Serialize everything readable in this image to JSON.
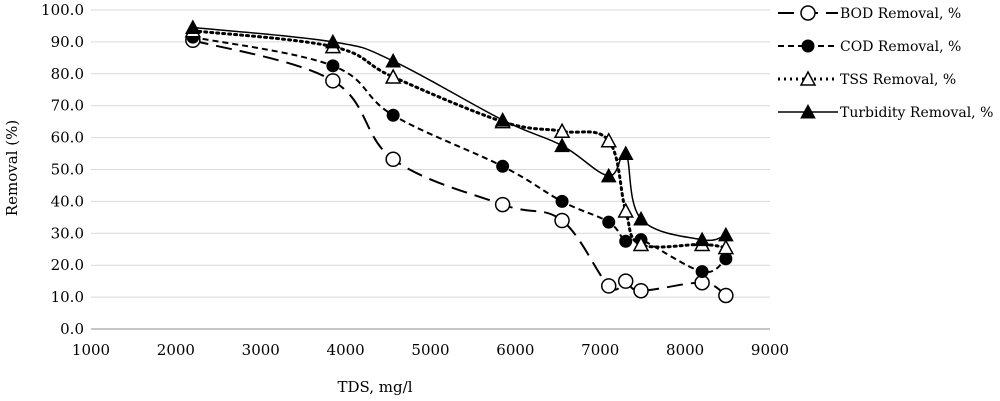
{
  "chart_data": {
    "type": "line",
    "title": "",
    "xlabel": "TDS, mg/l",
    "ylabel": "Removal (%)",
    "xlim": [
      1000,
      9000
    ],
    "ylim": [
      0,
      100
    ],
    "x_ticks": [
      "1000",
      "2000",
      "3000",
      "4000",
      "5000",
      "6000",
      "7000",
      "8000",
      "9000"
    ],
    "y_ticks": [
      "0.0",
      "10.0",
      "20.0",
      "30.0",
      "40.0",
      "50.0",
      "60.0",
      "70.0",
      "80.0",
      "90.0",
      "100.0"
    ],
    "grid": "horizontal",
    "legend_position": "right",
    "series": [
      {
        "name": "BOD Removal, %",
        "line_style": "long-dash",
        "marker": "open-circle",
        "color": "#000000",
        "points": [
          [
            2200,
            90.5
          ],
          [
            3850,
            77.8
          ],
          [
            4560,
            53.2
          ],
          [
            5850,
            39.0
          ],
          [
            6550,
            34.0
          ],
          [
            7100,
            13.5
          ],
          [
            7300,
            15.0
          ],
          [
            7480,
            12.0
          ],
          [
            8200,
            14.5
          ],
          [
            8480,
            10.5
          ]
        ]
      },
      {
        "name": "COD Removal, %",
        "line_style": "dash",
        "marker": "filled-circle",
        "color": "#000000",
        "points": [
          [
            2200,
            91.5
          ],
          [
            3850,
            82.5
          ],
          [
            4560,
            67.0
          ],
          [
            5850,
            51.0
          ],
          [
            6550,
            40.0
          ],
          [
            7100,
            33.5
          ],
          [
            7300,
            27.5
          ],
          [
            7480,
            28.0
          ],
          [
            8200,
            18.0
          ],
          [
            8480,
            22.0
          ]
        ]
      },
      {
        "name": "TSS Removal, %",
        "line_style": "dotted",
        "marker": "open-triangle",
        "color": "#000000",
        "points": [
          [
            2200,
            93.5
          ],
          [
            3850,
            88.5
          ],
          [
            4560,
            79.0
          ],
          [
            5850,
            65.0
          ],
          [
            6550,
            62.0
          ],
          [
            7100,
            59.0
          ],
          [
            7300,
            37.0
          ],
          [
            7480,
            26.5
          ],
          [
            8200,
            26.5
          ],
          [
            8480,
            25.5
          ]
        ]
      },
      {
        "name": "Turbidity Removal, %",
        "line_style": "solid",
        "marker": "filled-triangle",
        "color": "#000000",
        "points": [
          [
            2200,
            94.5
          ],
          [
            3850,
            90.0
          ],
          [
            4560,
            84.0
          ],
          [
            5850,
            65.5
          ],
          [
            6550,
            57.5
          ],
          [
            7100,
            48.0
          ],
          [
            7300,
            55.0
          ],
          [
            7480,
            34.5
          ],
          [
            8200,
            28.0
          ],
          [
            8480,
            29.5
          ]
        ]
      }
    ]
  }
}
